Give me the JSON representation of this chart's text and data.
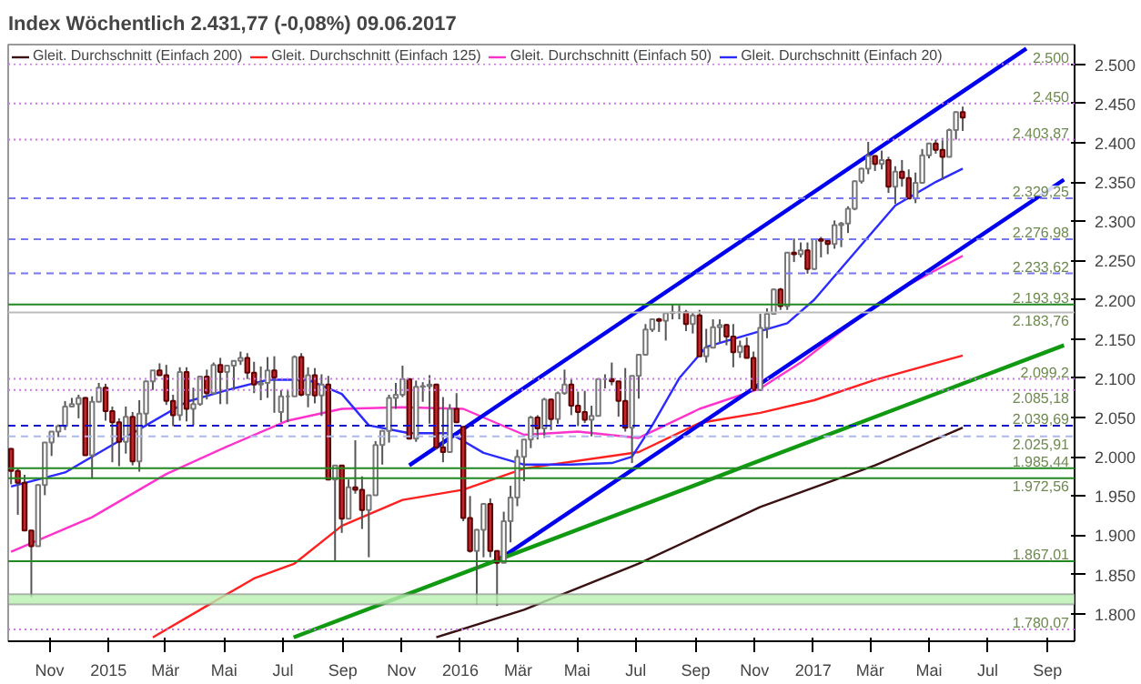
{
  "chart_data": {
    "type": "candlestick",
    "title": "Index   Wöchentlich   2.431,77 (-0,08%)   09.06.2017",
    "x": [
      "2014-09-22",
      "2014-09-29",
      "2014-10-06",
      "2014-10-13",
      "2014-10-20",
      "2014-10-27",
      "2014-11-03",
      "2014-11-10",
      "2014-11-17",
      "2014-11-24",
      "2014-12-01",
      "2014-12-08",
      "2014-12-15",
      "2014-12-22",
      "2014-12-29",
      "2015-01-05",
      "2015-01-12",
      "2015-01-19",
      "2015-01-26",
      "2015-02-02",
      "2015-02-09",
      "2015-02-16",
      "2015-02-23",
      "2015-03-02",
      "2015-03-09",
      "2015-03-16",
      "2015-03-23",
      "2015-03-30",
      "2015-04-06",
      "2015-04-13",
      "2015-04-20",
      "2015-04-27",
      "2015-05-04",
      "2015-05-11",
      "2015-05-18",
      "2015-05-25",
      "2015-06-01",
      "2015-06-08",
      "2015-06-15",
      "2015-06-22",
      "2015-06-29",
      "2015-07-06",
      "2015-07-13",
      "2015-07-20",
      "2015-07-27",
      "2015-08-03",
      "2015-08-10",
      "2015-08-17",
      "2015-08-24",
      "2015-08-31",
      "2015-09-07",
      "2015-09-14",
      "2015-09-21",
      "2015-09-28",
      "2015-10-05",
      "2015-10-12",
      "2015-10-19",
      "2015-10-26",
      "2015-11-02",
      "2015-11-09",
      "2015-11-16",
      "2015-11-23",
      "2015-11-30",
      "2015-12-07",
      "2015-12-14",
      "2015-12-21",
      "2015-12-28",
      "2016-01-04",
      "2016-01-11",
      "2016-01-18",
      "2016-01-25",
      "2016-02-01",
      "2016-02-08",
      "2016-02-15",
      "2016-02-22",
      "2016-02-29",
      "2016-03-07",
      "2016-03-14",
      "2016-03-21",
      "2016-03-28",
      "2016-04-04",
      "2016-04-11",
      "2016-04-18",
      "2016-04-25",
      "2016-05-02",
      "2016-05-09",
      "2016-05-16",
      "2016-05-23",
      "2016-05-30",
      "2016-06-06",
      "2016-06-13",
      "2016-06-20",
      "2016-06-27",
      "2016-07-04",
      "2016-07-11",
      "2016-07-18",
      "2016-07-25",
      "2016-08-01",
      "2016-08-08",
      "2016-08-15",
      "2016-08-22",
      "2016-08-29",
      "2016-09-05",
      "2016-09-12",
      "2016-09-19",
      "2016-09-26",
      "2016-10-03",
      "2016-10-10",
      "2016-10-17",
      "2016-10-24",
      "2016-10-31",
      "2016-11-07",
      "2016-11-14",
      "2016-11-21",
      "2016-11-28",
      "2016-12-05",
      "2016-12-12",
      "2016-12-19",
      "2016-12-26",
      "2017-01-02",
      "2017-01-09",
      "2017-01-16",
      "2017-01-23",
      "2017-01-30",
      "2017-02-06",
      "2017-02-13",
      "2017-02-20",
      "2017-02-27",
      "2017-03-06",
      "2017-03-13",
      "2017-03-20",
      "2017-03-27",
      "2017-04-03",
      "2017-04-10",
      "2017-04-17",
      "2017-04-24",
      "2017-05-01",
      "2017-05-08",
      "2017-05-15",
      "2017-05-22",
      "2017-05-29",
      "2017-06-05"
    ],
    "ohlc": [
      [
        2010,
        2011,
        1965,
        1982
      ],
      [
        1982,
        1985,
        1926,
        1967
      ],
      [
        1967,
        1977,
        1906,
        1906
      ],
      [
        1906,
        1906,
        1821,
        1886
      ],
      [
        1886,
        1965,
        1886,
        1964
      ],
      [
        1964,
        2018,
        1951,
        2018
      ],
      [
        2018,
        2032,
        2001,
        2032
      ],
      [
        2032,
        2041,
        2025,
        2039
      ],
      [
        2039,
        2071,
        2034,
        2064
      ],
      [
        2064,
        2075,
        2064,
        2067
      ],
      [
        2067,
        2079,
        2049,
        2075
      ],
      [
        2075,
        2076,
        2002,
        2002
      ],
      [
        2002,
        2077,
        1972,
        2070
      ],
      [
        2070,
        2094,
        2070,
        2088
      ],
      [
        2088,
        2093,
        2046,
        2058
      ],
      [
        2058,
        2064,
        1993,
        2044
      ],
      [
        2044,
        2049,
        1988,
        2019
      ],
      [
        2019,
        2064,
        2004,
        2051
      ],
      [
        2051,
        2057,
        1989,
        1994
      ],
      [
        1994,
        2072,
        1981,
        2055
      ],
      [
        2055,
        2097,
        2041,
        2096
      ],
      [
        2096,
        2110,
        2085,
        2110
      ],
      [
        2110,
        2119,
        2103,
        2104
      ],
      [
        2104,
        2117,
        2066,
        2071
      ],
      [
        2071,
        2079,
        2039,
        2053
      ],
      [
        2053,
        2114,
        2046,
        2108
      ],
      [
        2108,
        2114,
        2045,
        2061
      ],
      [
        2061,
        2088,
        2040,
        2067
      ],
      [
        2067,
        2103,
        2065,
        2102
      ],
      [
        2102,
        2111,
        2073,
        2081
      ],
      [
        2081,
        2120,
        2079,
        2117
      ],
      [
        2117,
        2126,
        2067,
        2108
      ],
      [
        2108,
        2117,
        2067,
        2116
      ],
      [
        2116,
        2123,
        2085,
        2122
      ],
      [
        2122,
        2134,
        2117,
        2126
      ],
      [
        2126,
        2132,
        2099,
        2107
      ],
      [
        2107,
        2121,
        2081,
        2092
      ],
      [
        2092,
        2115,
        2072,
        2094
      ],
      [
        2094,
        2127,
        2075,
        2110
      ],
      [
        2110,
        2128,
        2056,
        2101
      ],
      [
        2057,
        2085,
        2044,
        2077
      ],
      [
        2077,
        2085,
        2044,
        2077
      ],
      [
        2077,
        2129,
        2077,
        2127
      ],
      [
        2127,
        2132,
        2077,
        2079
      ],
      [
        2079,
        2114,
        2063,
        2104
      ],
      [
        2104,
        2113,
        2068,
        2078
      ],
      [
        2078,
        2105,
        2052,
        2092
      ],
      [
        2092,
        2103,
        1970,
        1971
      ],
      [
        1971,
        1989,
        1867,
        1989
      ],
      [
        1989,
        1989,
        1903,
        1921
      ],
      [
        1921,
        1971,
        1921,
        1961
      ],
      [
        1961,
        2021,
        1953,
        1958
      ],
      [
        1958,
        1975,
        1908,
        1932
      ],
      [
        1932,
        1951,
        1872,
        1951
      ],
      [
        1951,
        2020,
        1951,
        2015
      ],
      [
        2015,
        2034,
        1990,
        2033
      ],
      [
        2033,
        2079,
        2018,
        2075
      ],
      [
        2075,
        2094,
        2061,
        2079
      ],
      [
        2079,
        2116,
        2076,
        2099
      ],
      [
        2099,
        2099,
        2022,
        2023
      ],
      [
        2023,
        2097,
        2019,
        2089
      ],
      [
        2089,
        2095,
        2070,
        2090
      ],
      [
        2090,
        2104,
        2042,
        2092
      ],
      [
        2092,
        2093,
        2009,
        2012
      ],
      [
        2012,
        2076,
        1993,
        2006
      ],
      [
        2006,
        2067,
        2005,
        2061
      ],
      [
        2061,
        2081,
        2043,
        2044
      ],
      [
        2038,
        2038,
        1918,
        1922
      ],
      [
        1922,
        1950,
        1878,
        1880
      ],
      [
        1880,
        1908,
        1812,
        1907
      ],
      [
        1907,
        1940,
        1872,
        1940
      ],
      [
        1940,
        1947,
        1872,
        1880
      ],
      [
        1880,
        1881,
        1810,
        1865
      ],
      [
        1865,
        1930,
        1865,
        1918
      ],
      [
        1918,
        1963,
        1891,
        1948
      ],
      [
        1948,
        2009,
        1937,
        2000
      ],
      [
        2000,
        2022,
        1969,
        2022
      ],
      [
        2022,
        2052,
        2011,
        2050
      ],
      [
        2050,
        2053,
        2022,
        2036
      ],
      [
        2036,
        2075,
        2024,
        2073
      ],
      [
        2073,
        2074,
        2034,
        2048
      ],
      [
        2048,
        2083,
        2042,
        2081
      ],
      [
        2081,
        2111,
        2079,
        2092
      ],
      [
        2092,
        2099,
        2053,
        2065
      ],
      [
        2065,
        2083,
        2039,
        2057
      ],
      [
        2057,
        2084,
        2043,
        2047
      ],
      [
        2047,
        2065,
        2026,
        2052
      ],
      [
        2052,
        2100,
        2052,
        2099
      ],
      [
        2099,
        2105,
        2087,
        2099
      ],
      [
        2099,
        2120,
        2091,
        2096
      ],
      [
        2096,
        2096,
        2051,
        2071
      ],
      [
        2071,
        2113,
        2032,
        2037
      ],
      [
        2037,
        2103,
        1992,
        2103
      ],
      [
        2103,
        2130,
        2074,
        2130
      ],
      [
        2130,
        2169,
        2130,
        2162
      ],
      [
        2162,
        2175,
        2159,
        2175
      ],
      [
        2175,
        2177,
        2159,
        2173
      ],
      [
        2173,
        2183,
        2148,
        2183
      ],
      [
        2183,
        2194,
        2175,
        2184
      ],
      [
        2184,
        2193,
        2175,
        2184
      ],
      [
        2184,
        2187,
        2160,
        2169
      ],
      [
        2169,
        2184,
        2157,
        2180
      ],
      [
        2180,
        2187,
        2128,
        2128
      ],
      [
        2128,
        2163,
        2120,
        2139
      ],
      [
        2139,
        2175,
        2139,
        2165
      ],
      [
        2165,
        2175,
        2145,
        2168
      ],
      [
        2168,
        2169,
        2142,
        2153
      ],
      [
        2153,
        2169,
        2114,
        2133
      ],
      [
        2133,
        2148,
        2126,
        2141
      ],
      [
        2141,
        2152,
        2126,
        2126
      ],
      [
        2126,
        2134,
        2084,
        2085
      ],
      [
        2085,
        2182,
        2084,
        2164
      ],
      [
        2164,
        2189,
        2151,
        2182
      ],
      [
        2182,
        2214,
        2182,
        2213
      ],
      [
        2213,
        2215,
        2187,
        2192
      ],
      [
        2192,
        2260,
        2187,
        2260
      ],
      [
        2260,
        2278,
        2248,
        2258
      ],
      [
        2258,
        2273,
        2254,
        2263
      ],
      [
        2263,
        2273,
        2233,
        2239
      ],
      [
        2239,
        2277,
        2238,
        2277
      ],
      [
        2277,
        2280,
        2254,
        2275
      ],
      [
        2275,
        2276,
        2258,
        2271
      ],
      [
        2271,
        2301,
        2265,
        2295
      ],
      [
        2295,
        2299,
        2267,
        2297
      ],
      [
        2297,
        2319,
        2285,
        2316
      ],
      [
        2316,
        2352,
        2314,
        2351
      ],
      [
        2351,
        2368,
        2348,
        2367
      ],
      [
        2367,
        2401,
        2360,
        2383
      ],
      [
        2383,
        2384,
        2364,
        2373
      ],
      [
        2373,
        2390,
        2366,
        2378
      ],
      [
        2378,
        2382,
        2336,
        2344
      ],
      [
        2344,
        2370,
        2322,
        2363
      ],
      [
        2363,
        2378,
        2344,
        2355
      ],
      [
        2355,
        2366,
        2328,
        2329
      ],
      [
        2329,
        2362,
        2323,
        2349
      ],
      [
        2349,
        2392,
        2349,
        2384
      ],
      [
        2384,
        2400,
        2380,
        2399
      ],
      [
        2399,
        2404,
        2386,
        2391
      ],
      [
        2391,
        2406,
        2353,
        2382
      ],
      [
        2382,
        2418,
        2382,
        2416
      ],
      [
        2416,
        2440,
        2404,
        2439
      ],
      [
        2439,
        2446,
        2415,
        2432
      ]
    ],
    "series": [
      {
        "type": "line",
        "name": "Gleit. Durchschnitt (Einfach 200)",
        "color": "#3a1010",
        "x": [
          "2015-12-07",
          "2016-03-07",
          "2016-07-04",
          "2016-11-07",
          "2017-03-06",
          "2017-06-05"
        ],
        "values": [
          1770,
          1805,
          1864,
          1936,
          1989,
          2037
        ]
      },
      {
        "type": "line",
        "name": "Gleit. Durchschnitt (Einfach 125)",
        "color": "#ff2020",
        "x": [
          "2015-02-16",
          "2015-04-13",
          "2015-06-01",
          "2015-07-13",
          "2015-08-31",
          "2015-11-02",
          "2016-01-04",
          "2016-03-07",
          "2016-07-04",
          "2016-09-05",
          "2016-11-07",
          "2017-01-02",
          "2017-03-06",
          "2017-06-05"
        ],
        "values": [
          1770,
          1810,
          1845,
          1864,
          1912,
          1945,
          1958,
          1985,
          2006,
          2043,
          2056,
          2072,
          2098,
          2129
        ]
      },
      {
        "type": "line",
        "name": "Gleit. Durchschnitt (Einfach 50)",
        "color": "#ff33cc",
        "x": [
          "2014-09-22",
          "2014-12-15",
          "2015-03-02",
          "2015-05-04",
          "2015-07-06",
          "2015-08-31",
          "2015-11-02",
          "2016-01-04",
          "2016-03-07",
          "2016-05-02",
          "2016-07-04",
          "2016-09-05",
          "2016-11-07",
          "2016-12-19",
          "2017-01-30",
          "2017-03-27",
          "2017-06-05"
        ],
        "values": [
          1879,
          1923,
          1978,
          2013,
          2046,
          2061,
          2063,
          2061,
          2028,
          2032,
          2024,
          2061,
          2087,
          2120,
          2160,
          2210,
          2256
        ]
      },
      {
        "type": "line",
        "name": "Gleit. Durchschnitt (Einfach 20)",
        "color": "#2b2bff",
        "x": [
          "2014-09-22",
          "2014-11-17",
          "2014-12-29",
          "2015-02-09",
          "2015-03-23",
          "2015-05-04",
          "2015-06-15",
          "2015-07-27",
          "2015-08-31",
          "2015-09-28",
          "2015-11-09",
          "2015-12-21",
          "2016-01-25",
          "2016-03-07",
          "2016-04-25",
          "2016-06-06",
          "2016-06-27",
          "2016-07-18",
          "2016-08-15",
          "2016-09-12",
          "2016-10-24",
          "2016-12-05",
          "2017-01-02",
          "2017-02-13",
          "2017-03-27",
          "2017-05-08",
          "2017-06-05"
        ],
        "values": [
          1962,
          1980,
          2010,
          2040,
          2070,
          2085,
          2098,
          2098,
          2080,
          2040,
          2030,
          2030,
          2005,
          1990,
          1990,
          1992,
          2000,
          2040,
          2100,
          2140,
          2155,
          2170,
          2200,
          2260,
          2320,
          2350,
          2367
        ]
      },
      {
        "type": "line",
        "color": "#0000ee",
        "x": [
          "2015-11-09",
          "2017-08-10"
        ],
        "values": [
          1989,
          2520
        ]
      },
      {
        "type": "line",
        "color": "#0000ee",
        "x": [
          "2016-02-11",
          "2017-09-18"
        ],
        "values": [
          1870,
          2353
        ]
      },
      {
        "type": "line",
        "color": "#119911",
        "x": [
          "2015-07-12",
          "2017-09-18"
        ],
        "values": [
          1770,
          2142
        ]
      }
    ],
    "ref_lines": [
      {
        "axis": "y",
        "value": 2500,
        "label": "2.500",
        "color": "#cc77ee",
        "line_style": "dotted"
      },
      {
        "axis": "y",
        "value": 2450,
        "label": "2.450",
        "color": "#cc77ee",
        "line_style": "dotted"
      },
      {
        "axis": "y",
        "value": 2403.87,
        "label": "2.403,87",
        "color": "#cc77ee",
        "line_style": "dotted"
      },
      {
        "axis": "y",
        "value": 2329.25,
        "label": "2.329,25",
        "color": "#7777ee",
        "line_style": "dashed"
      },
      {
        "axis": "y",
        "value": 2276.98,
        "label": "2.276,98",
        "color": "#7777ee",
        "line_style": "dashed"
      },
      {
        "axis": "y",
        "value": 2233.62,
        "label": "2.233,62",
        "color": "#7777ee",
        "line_style": "dashed"
      },
      {
        "axis": "y",
        "value": 2193.93,
        "label": "2.193,93",
        "color": "#228822",
        "line_style": "solid"
      },
      {
        "axis": "y",
        "value": 2183.76,
        "label": "2.183,76",
        "color": "#bbbbbb",
        "line_style": "solid"
      },
      {
        "axis": "y",
        "value": 2099.2,
        "label": "2.099,2",
        "color": "#cc77ee",
        "line_style": "dotted"
      },
      {
        "axis": "y",
        "value": 2085.18,
        "label": "2.085,18",
        "color": "#cc77ee",
        "line_style": "dotted"
      },
      {
        "axis": "y",
        "value": 2039.69,
        "label": "2.039,69",
        "color": "#1111cc",
        "line_style": "dashed"
      },
      {
        "axis": "y",
        "value": 2025.91,
        "label": "2.025,91",
        "color": "#aab8ee",
        "line_style": "dashed"
      },
      {
        "axis": "y",
        "value": 1985.44,
        "label": "1.985,44",
        "color": "#228822",
        "line_style": "solid"
      },
      {
        "axis": "y",
        "value": 1972.56,
        "label": "1.972,56",
        "color": "#228822",
        "line_style": "solid"
      },
      {
        "axis": "y",
        "value": 1867.01,
        "label": "1.867,01",
        "color": "#228822",
        "line_style": "solid"
      },
      {
        "axis": "y",
        "value": 1780.07,
        "label": "1.780,07",
        "color": "#cc77ee",
        "line_style": "dotted"
      }
    ],
    "bands": [
      {
        "axis": "y",
        "from": 1812,
        "to": 1825,
        "color": "#b8f0b0"
      }
    ],
    "xlim": [
      "2014-09-19",
      "2017-09-29"
    ],
    "xticks": [
      {
        "value": "2014-11-01",
        "label": "Nov"
      },
      {
        "value": "2015-01-01",
        "label": "2015"
      },
      {
        "value": "2015-03-01",
        "label": "Mär"
      },
      {
        "value": "2015-05-01",
        "label": "Mai"
      },
      {
        "value": "2015-07-01",
        "label": "Jul"
      },
      {
        "value": "2015-09-01",
        "label": "Sep"
      },
      {
        "value": "2015-11-01",
        "label": "Nov"
      },
      {
        "value": "2016-01-01",
        "label": "2016"
      },
      {
        "value": "2016-03-01",
        "label": "Mär"
      },
      {
        "value": "2016-05-01",
        "label": "Mai"
      },
      {
        "value": "2016-07-01",
        "label": "Jul"
      },
      {
        "value": "2016-09-01",
        "label": "Sep"
      },
      {
        "value": "2016-11-01",
        "label": "Nov"
      },
      {
        "value": "2017-01-01",
        "label": "2017"
      },
      {
        "value": "2017-03-01",
        "label": "Mär"
      },
      {
        "value": "2017-05-01",
        "label": "Mai"
      },
      {
        "value": "2017-07-01",
        "label": "Jul"
      },
      {
        "value": "2017-09-01",
        "label": "Sep"
      }
    ],
    "ylim": [
      1765,
      2525
    ],
    "yticks": [
      {
        "value": 1800,
        "label": "1.800"
      },
      {
        "value": 1850,
        "label": "1.850"
      },
      {
        "value": 1900,
        "label": "1.900"
      },
      {
        "value": 1950,
        "label": "1.950"
      },
      {
        "value": 2000,
        "label": "2.000"
      },
      {
        "value": 2050,
        "label": "2.050"
      },
      {
        "value": 2100,
        "label": "2.100"
      },
      {
        "value": 2150,
        "label": "2.150"
      },
      {
        "value": 2200,
        "label": "2.200"
      },
      {
        "value": 2250,
        "label": "2.250"
      },
      {
        "value": 2300,
        "label": "2.300"
      },
      {
        "value": 2350,
        "label": "2.350"
      },
      {
        "value": 2400,
        "label": "2.400"
      },
      {
        "value": 2450,
        "label": "2.450"
      },
      {
        "value": 2500,
        "label": "2.500"
      }
    ],
    "legend": "top left"
  }
}
